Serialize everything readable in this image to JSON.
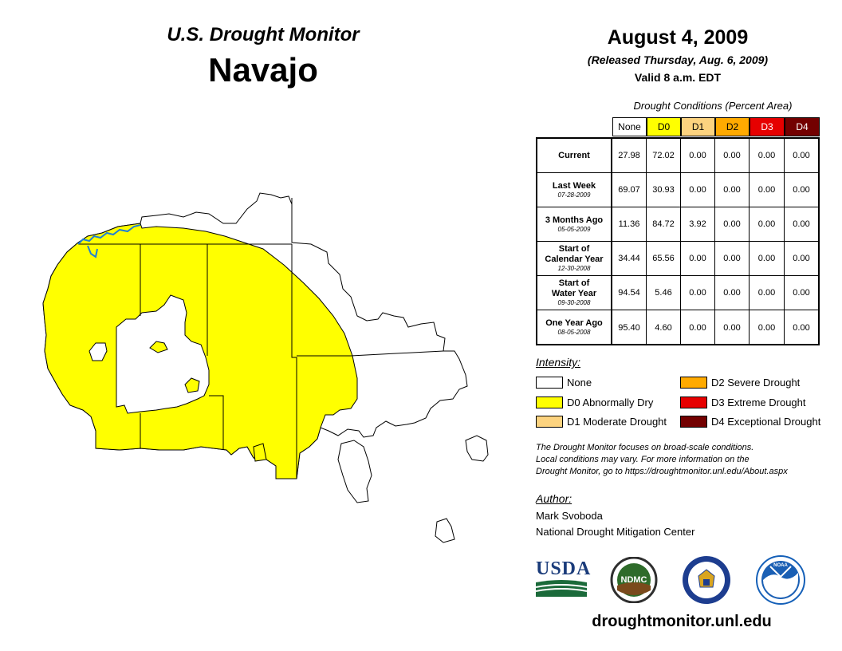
{
  "header": {
    "subtitle": "U.S. Drought Monitor",
    "region": "Navajo",
    "date": "August 4, 2009",
    "released": "(Released Thursday, Aug. 6, 2009)",
    "valid": "Valid 8 a.m. EDT"
  },
  "table": {
    "caption": "Drought Conditions (Percent Area)",
    "columns": [
      {
        "label": "None",
        "color": "#ffffff",
        "text_color": "#000000"
      },
      {
        "label": "D0",
        "color": "#ffff00",
        "text_color": "#000000"
      },
      {
        "label": "D1",
        "color": "#fcd37f",
        "text_color": "#000000"
      },
      {
        "label": "D2",
        "color": "#ffaa00",
        "text_color": "#000000"
      },
      {
        "label": "D3",
        "color": "#e60000",
        "text_color": "#ffffff"
      },
      {
        "label": "D4",
        "color": "#730000",
        "text_color": "#ffffff"
      }
    ],
    "rows": [
      {
        "label": "Current",
        "label2": "",
        "date": "",
        "values": [
          "27.98",
          "72.02",
          "0.00",
          "0.00",
          "0.00",
          "0.00"
        ]
      },
      {
        "label": "Last Week",
        "label2": "",
        "date": "07-28-2009",
        "values": [
          "69.07",
          "30.93",
          "0.00",
          "0.00",
          "0.00",
          "0.00"
        ]
      },
      {
        "label": "3 Months Ago",
        "label2": "",
        "date": "05-05-2009",
        "values": [
          "11.36",
          "84.72",
          "3.92",
          "0.00",
          "0.00",
          "0.00"
        ]
      },
      {
        "label": "Start of",
        "label2": "Calendar Year",
        "date": "12-30-2008",
        "values": [
          "34.44",
          "65.56",
          "0.00",
          "0.00",
          "0.00",
          "0.00"
        ]
      },
      {
        "label": "Start of",
        "label2": "Water Year",
        "date": "09-30-2008",
        "values": [
          "94.54",
          "5.46",
          "0.00",
          "0.00",
          "0.00",
          "0.00"
        ]
      },
      {
        "label": "One Year Ago",
        "label2": "",
        "date": "08-05-2008",
        "values": [
          "95.40",
          "4.60",
          "0.00",
          "0.00",
          "0.00",
          "0.00"
        ]
      }
    ]
  },
  "legend": {
    "title": "Intensity:",
    "items": [
      {
        "label": "None",
        "color": "#ffffff"
      },
      {
        "label": "D0 Abnormally Dry",
        "color": "#ffff00"
      },
      {
        "label": "D1 Moderate Drought",
        "color": "#fcd37f"
      },
      {
        "label": "D2 Severe Drought",
        "color": "#ffaa00"
      },
      {
        "label": "D3 Extreme Drought",
        "color": "#e60000"
      },
      {
        "label": "D4 Exceptional Drought",
        "color": "#730000"
      }
    ]
  },
  "note": {
    "line1": "The Drought Monitor focuses on broad-scale conditions.",
    "line2": "Local conditions may vary. For more information on the",
    "line3": "Drought Monitor, go to https://droughtmonitor.unl.edu/About.aspx"
  },
  "author": {
    "title": "Author:",
    "name": "Mark Svoboda",
    "org": "National Drought Mitigation Center"
  },
  "logos": {
    "usda": "USDA",
    "ndmc": "NDMC",
    "noaa": "NOAA"
  },
  "footer": {
    "url": "droughtmonitor.unl.edu"
  },
  "map": {
    "fill_colors": {
      "none": "#ffffff",
      "d0": "#ffff00",
      "water": "#1e7fd6"
    }
  }
}
